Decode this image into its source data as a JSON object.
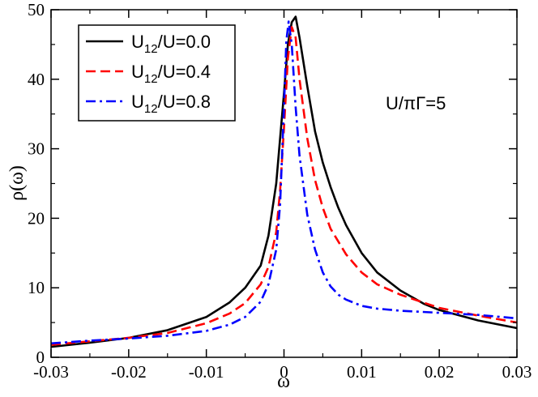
{
  "chart_data": {
    "type": "line",
    "xlabel": "ω",
    "ylabel": "ρ(ω)",
    "xlim": [
      -0.03,
      0.03
    ],
    "ylim": [
      0,
      50
    ],
    "x_ticks": [
      -0.03,
      -0.02,
      -0.01,
      0,
      0.01,
      0.02,
      0.03
    ],
    "x_tick_labels": [
      "-0.03",
      "-0.02",
      "-0.01",
      "0",
      "0.01",
      "0.02",
      "0.03"
    ],
    "y_ticks": [
      0,
      10,
      20,
      30,
      40,
      50
    ],
    "y_tick_labels": [
      "0",
      "10",
      "20",
      "30",
      "40",
      "50"
    ],
    "annotation": "U/πΓ=5",
    "legend_position": "top-left",
    "series": [
      {
        "name": "U12/U=0.0",
        "label_main": "U",
        "label_sub": "12",
        "label_rest": "/U=0.0",
        "color": "#000000",
        "dash": "solid",
        "x": [
          -0.03,
          -0.025,
          -0.02,
          -0.015,
          -0.01,
          -0.007,
          -0.005,
          -0.003,
          -0.002,
          -0.001,
          0,
          0.0005,
          0.001,
          0.0015,
          0.002,
          0.003,
          0.004,
          0.005,
          0.006,
          0.007,
          0.008,
          0.01,
          0.012,
          0.015,
          0.018,
          0.02,
          0.025,
          0.03
        ],
        "y": [
          1.5,
          2.1,
          2.8,
          3.9,
          5.8,
          7.9,
          10.0,
          13.2,
          17.5,
          25.0,
          38.0,
          45.0,
          48.2,
          49.0,
          46.0,
          39.0,
          32.5,
          28.0,
          24.5,
          21.5,
          19.0,
          15.0,
          12.2,
          9.6,
          7.7,
          6.8,
          5.3,
          4.2
        ]
      },
      {
        "name": "U12/U=0.4",
        "label_main": "U",
        "label_sub": "12",
        "label_rest": "/U=0.4",
        "color": "#ff0000",
        "dash": "dashed",
        "x": [
          -0.03,
          -0.025,
          -0.02,
          -0.015,
          -0.01,
          -0.007,
          -0.005,
          -0.003,
          -0.002,
          -0.001,
          -0.0005,
          0,
          0.0005,
          0.001,
          0.0015,
          0.002,
          0.003,
          0.004,
          0.005,
          0.006,
          0.008,
          0.01,
          0.012,
          0.015,
          0.02,
          0.025,
          0.03
        ],
        "y": [
          1.8,
          2.3,
          2.8,
          3.5,
          4.9,
          6.3,
          7.8,
          10.5,
          13.0,
          18.0,
          24.0,
          33.0,
          43.0,
          47.5,
          46.0,
          40.0,
          31.5,
          25.5,
          21.5,
          18.5,
          14.8,
          12.2,
          10.5,
          9.0,
          7.1,
          6.0,
          5.0
        ]
      },
      {
        "name": "U12/U=0.8",
        "label_main": "U",
        "label_sub": "12",
        "label_rest": "/U=0.8",
        "color": "#0000ff",
        "dash": "dash-dot",
        "x": [
          -0.03,
          -0.025,
          -0.02,
          -0.015,
          -0.01,
          -0.007,
          -0.005,
          -0.003,
          -0.002,
          -0.001,
          -0.0005,
          0,
          0.0003,
          0.0006,
          0.001,
          0.0015,
          0.002,
          0.003,
          0.004,
          0.005,
          0.006,
          0.007,
          0.008,
          0.01,
          0.012,
          0.015,
          0.02,
          0.025,
          0.03
        ],
        "y": [
          2.0,
          2.4,
          2.7,
          3.1,
          3.8,
          4.7,
          5.8,
          8.0,
          10.5,
          15.5,
          22.0,
          36.0,
          45.5,
          48.3,
          45.0,
          36.0,
          29.0,
          20.5,
          15.5,
          12.2,
          10.2,
          9.0,
          8.3,
          7.4,
          7.0,
          6.7,
          6.4,
          6.1,
          5.6
        ]
      }
    ]
  }
}
